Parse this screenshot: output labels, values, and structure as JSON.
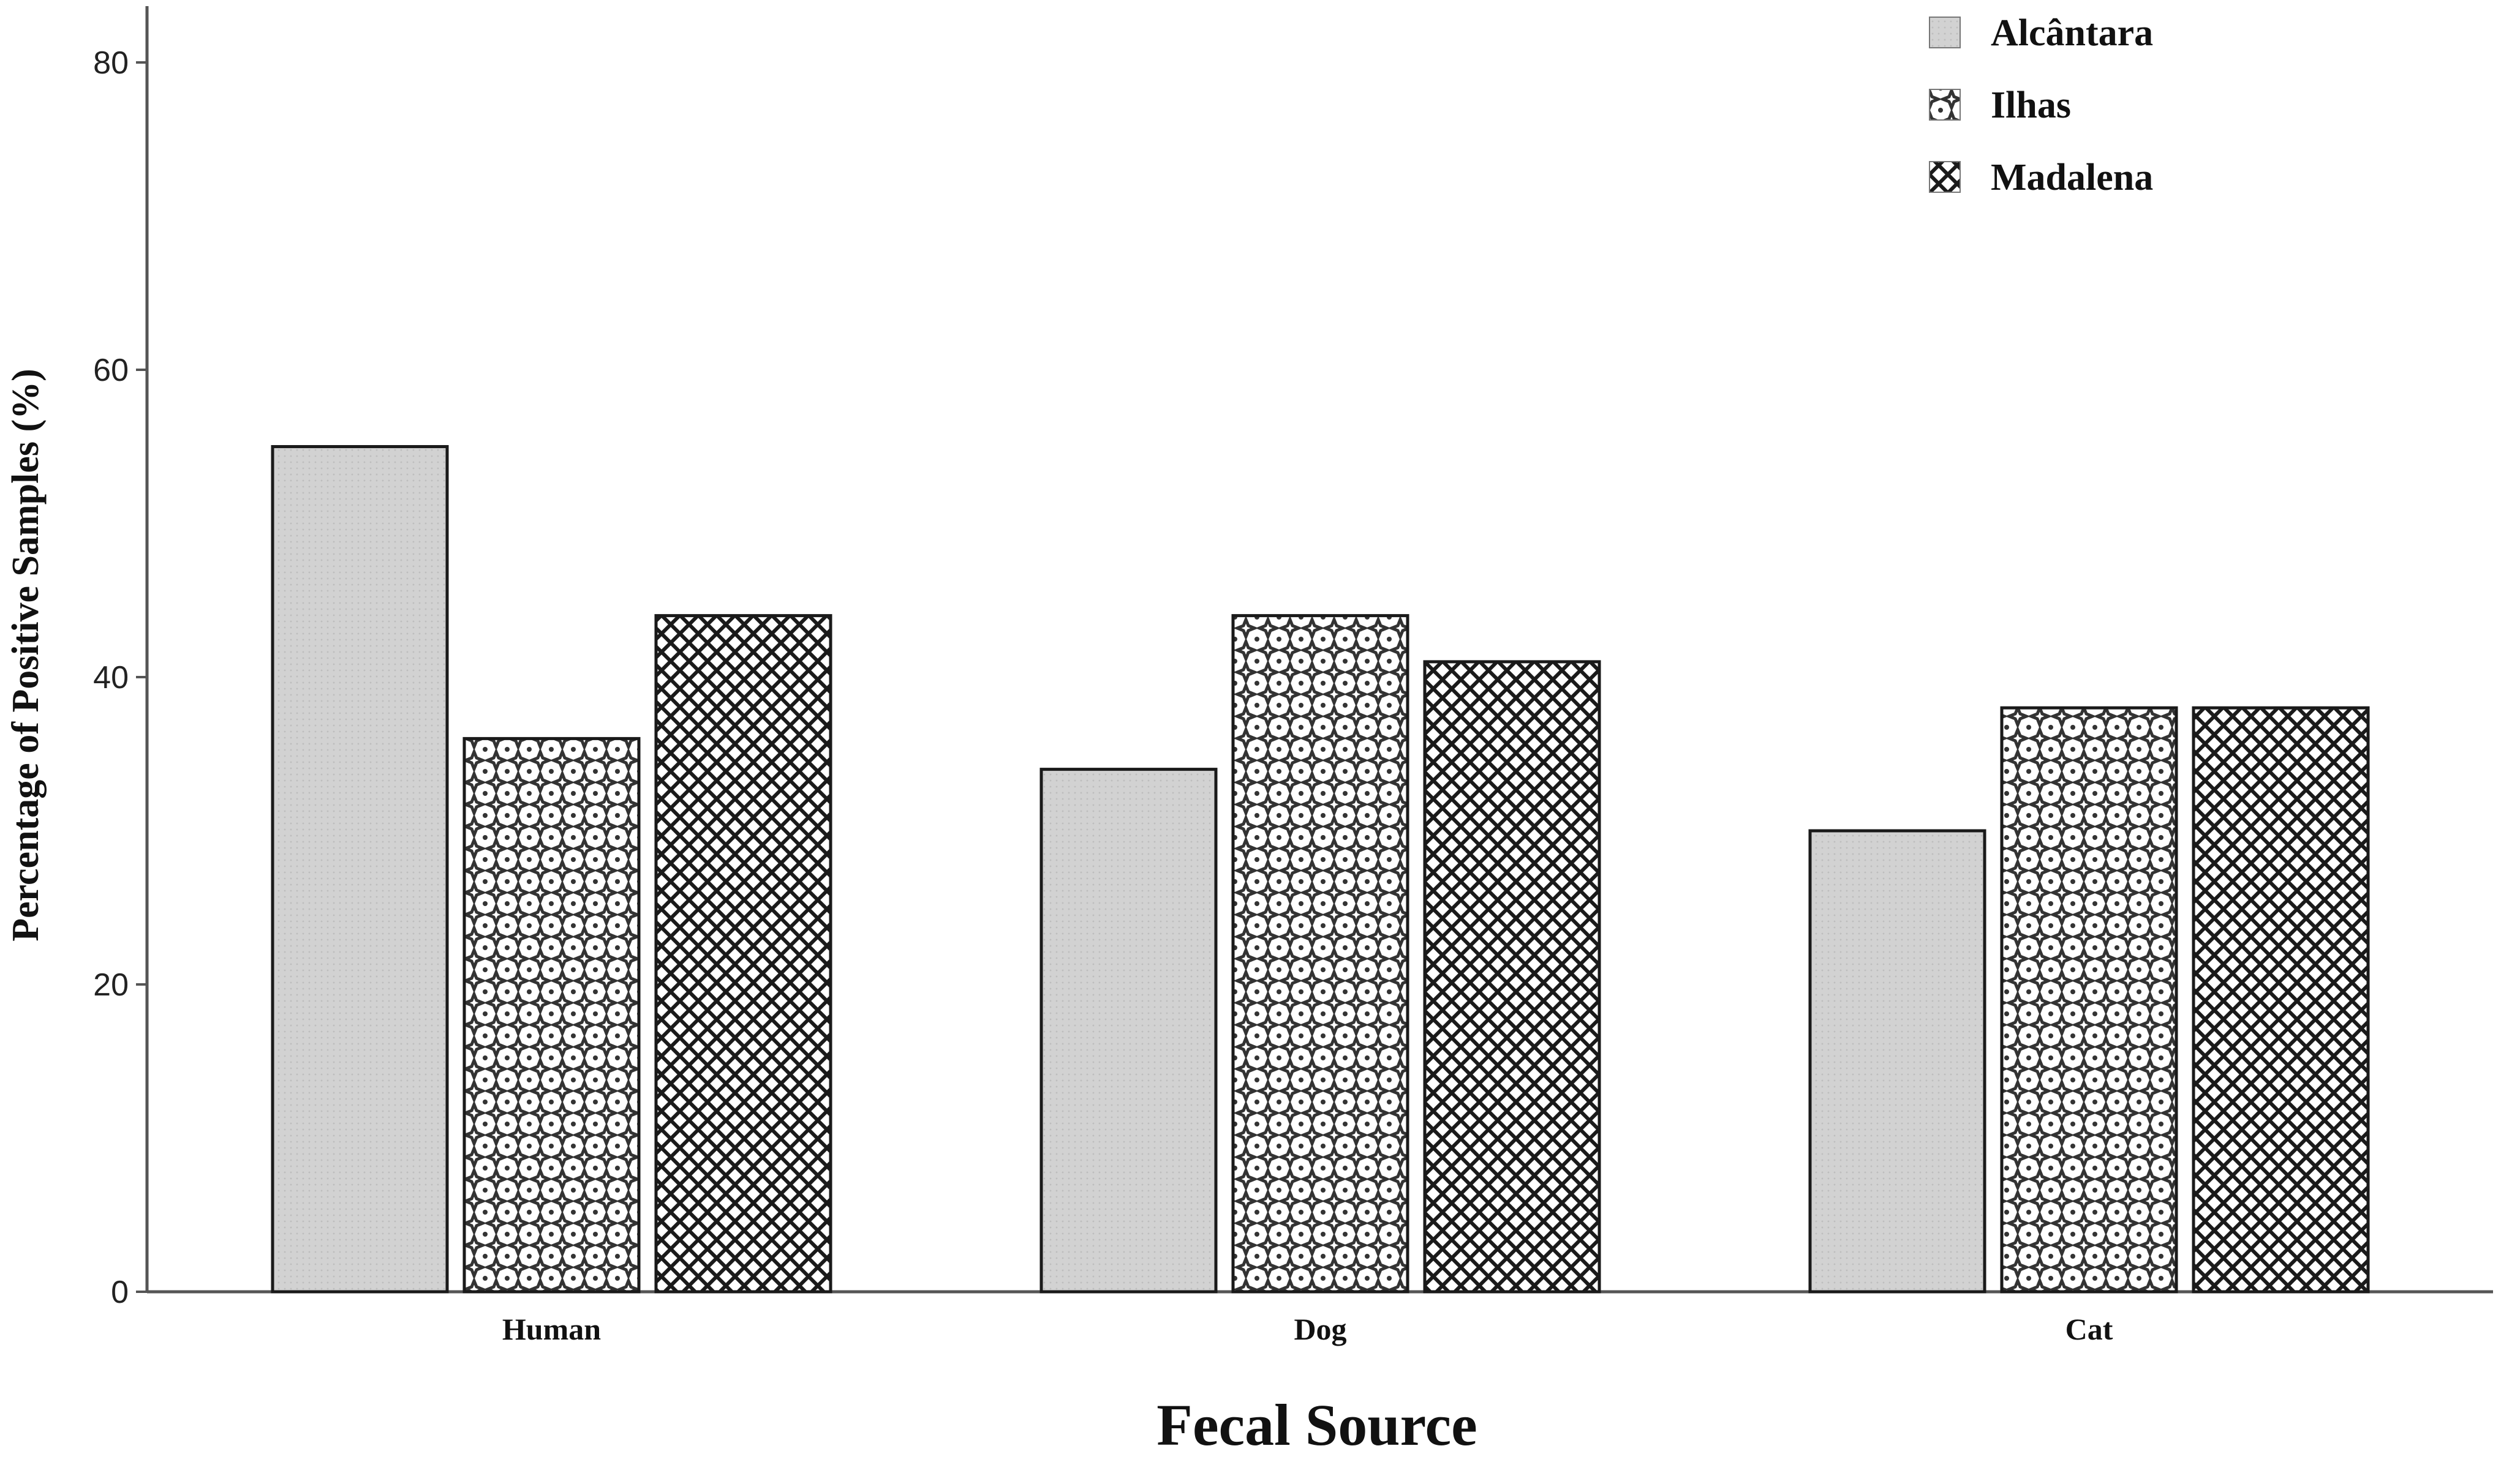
{
  "chart_data": {
    "type": "bar",
    "categories": [
      "Human",
      "Dog",
      "Cat"
    ],
    "series": [
      {
        "name": "Alcântara",
        "values": [
          55,
          34,
          30
        ],
        "pattern": "solid-gray",
        "color": "#d4d4d4"
      },
      {
        "name": "Ilhas",
        "values": [
          36,
          44,
          38
        ],
        "pattern": "plus-dots",
        "color": "#555555"
      },
      {
        "name": "Madalena",
        "values": [
          44,
          41,
          38
        ],
        "pattern": "diamond-grid",
        "color": "#222222"
      }
    ],
    "title": "",
    "xlabel": "Fecal Source",
    "ylabel": "Percentage of Positive Samples (%)",
    "ylim": [
      0,
      85
    ],
    "yticks": [
      0,
      20,
      40,
      60,
      80
    ],
    "grid": false,
    "legend_position": "top-right"
  }
}
